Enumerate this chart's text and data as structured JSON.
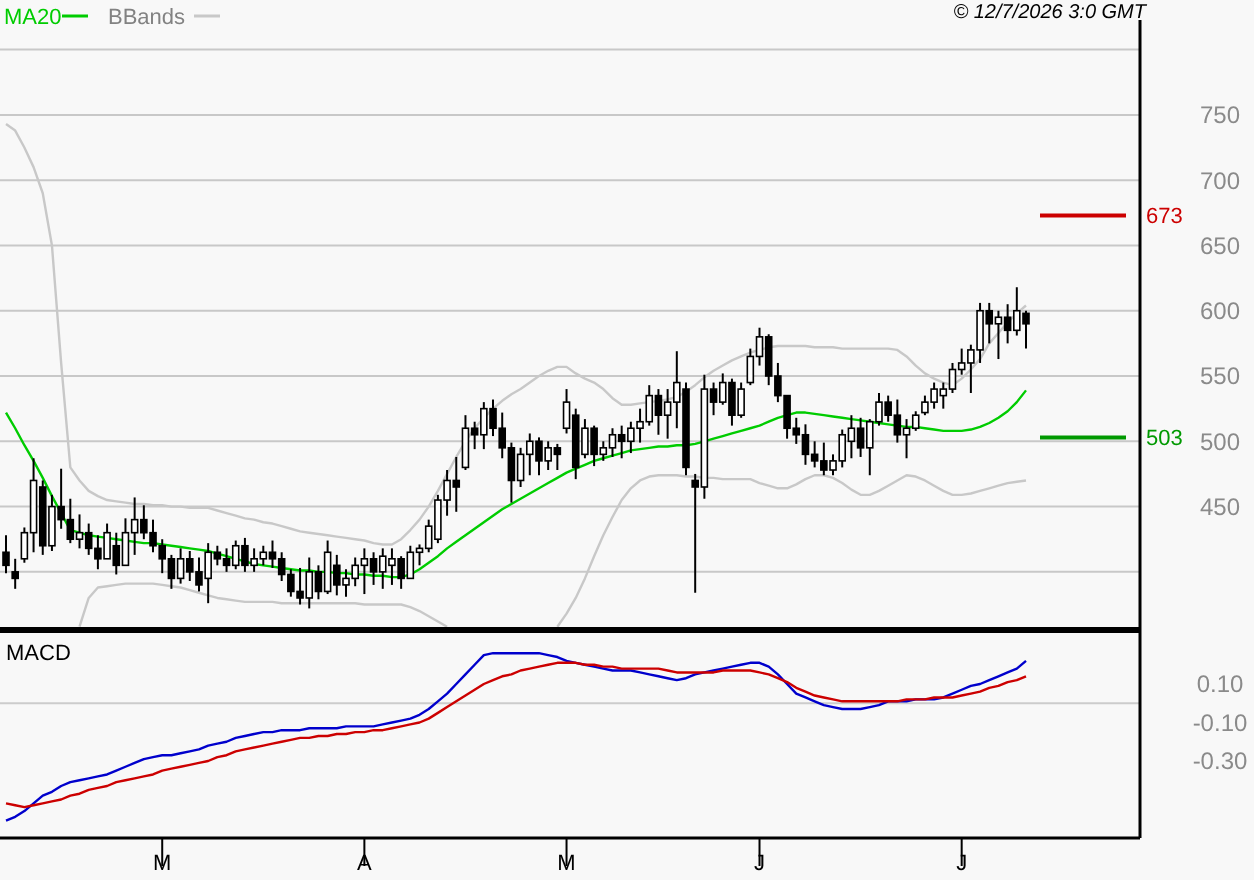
{
  "chart_data": [
    {
      "type": "candlestick",
      "annotations": [
        "© 12/7/2026 3:0 GMT"
      ],
      "legend": "top left",
      "grid": "y",
      "tick_labels": "y",
      "ylim": [
        357,
        838
      ],
      "yticks": [
        {
          "value": 400,
          "label": null
        },
        450,
        500,
        550,
        600,
        650,
        700,
        750,
        {
          "value": 800,
          "label": null
        }
      ],
      "categories": [
        null,
        null,
        null,
        null,
        null,
        null,
        null,
        null,
        null,
        null,
        null,
        null,
        null,
        null,
        null,
        null,
        null,
        null,
        null,
        null,
        null,
        null,
        null,
        null,
        null,
        null,
        null,
        null,
        null,
        null,
        null,
        null,
        null,
        null,
        null,
        null,
        null,
        null,
        null,
        null,
        null,
        null,
        null,
        null,
        null,
        null,
        null,
        null,
        null,
        null,
        null,
        null,
        null,
        null,
        null,
        null,
        null,
        null,
        null,
        null,
        null,
        null,
        null,
        null,
        null,
        null,
        null,
        null,
        null,
        null,
        null,
        null,
        null,
        null,
        null,
        null,
        null,
        null,
        null,
        null,
        null,
        null,
        null,
        null,
        null,
        null,
        null,
        null,
        null,
        null,
        null,
        null,
        null,
        null,
        null,
        null,
        null,
        null,
        null,
        null,
        null,
        null,
        null,
        null,
        null,
        null,
        null,
        null,
        null,
        null,
        null,
        null
      ],
      "ohlc": [
        [
          415,
          428,
          399,
          405
        ],
        [
          400,
          410,
          387,
          395
        ],
        [
          410,
          434,
          407,
          430
        ],
        [
          430,
          487,
          415,
          470
        ],
        [
          465,
          470,
          413,
          420
        ],
        [
          420,
          459,
          416,
          450
        ],
        [
          450,
          479,
          433,
          440
        ],
        [
          440,
          456,
          422,
          425
        ],
        [
          425,
          444,
          418,
          430
        ],
        [
          430,
          437,
          413,
          418
        ],
        [
          418,
          428,
          402,
          410
        ],
        [
          410,
          437,
          410,
          430
        ],
        [
          420,
          430,
          398,
          405
        ],
        [
          405,
          441,
          405,
          430
        ],
        [
          430,
          457,
          413,
          440
        ],
        [
          440,
          451,
          425,
          430
        ],
        [
          430,
          440,
          415,
          420
        ],
        [
          420,
          425,
          399,
          410
        ],
        [
          410,
          413,
          387,
          395
        ],
        [
          395,
          418,
          391,
          410
        ],
        [
          410,
          416,
          393,
          400
        ],
        [
          400,
          411,
          385,
          390
        ],
        [
          395,
          422,
          376,
          415
        ],
        [
          415,
          420,
          405,
          410
        ],
        [
          410,
          418,
          400,
          405
        ],
        [
          405,
          424,
          402,
          420
        ],
        [
          420,
          426,
          400,
          405
        ],
        [
          405,
          418,
          400,
          410
        ],
        [
          410,
          420,
          405,
          415
        ],
        [
          415,
          424,
          403,
          410
        ],
        [
          410,
          415,
          393,
          398
        ],
        [
          398,
          402,
          381,
          385
        ],
        [
          385,
          403,
          375,
          380
        ],
        [
          380,
          411,
          372,
          400
        ],
        [
          400,
          405,
          379,
          385
        ],
        [
          385,
          424,
          383,
          415
        ],
        [
          405,
          413,
          382,
          390
        ],
        [
          390,
          402,
          381,
          395
        ],
        [
          395,
          411,
          389,
          405
        ],
        [
          405,
          418,
          383,
          410
        ],
        [
          410,
          415,
          390,
          400
        ],
        [
          400,
          418,
          387,
          412
        ],
        [
          405,
          418,
          390,
          410
        ],
        [
          410,
          412,
          387,
          395
        ],
        [
          395,
          420,
          395,
          415
        ],
        [
          415,
          421,
          405,
          418
        ],
        [
          418,
          440,
          415,
          435
        ],
        [
          425,
          459,
          422,
          455
        ],
        [
          455,
          478,
          443,
          470
        ],
        [
          470,
          488,
          446,
          465
        ],
        [
          480,
          520,
          478,
          510
        ],
        [
          510,
          515,
          494,
          505
        ],
        [
          505,
          530,
          494,
          525
        ],
        [
          525,
          532,
          504,
          510
        ],
        [
          510,
          522,
          487,
          495
        ],
        [
          495,
          499,
          453,
          470
        ],
        [
          470,
          495,
          465,
          490
        ],
        [
          490,
          506,
          474,
          500
        ],
        [
          500,
          503,
          474,
          485
        ],
        [
          485,
          500,
          478,
          495
        ],
        [
          495,
          498,
          478,
          490
        ],
        [
          510,
          540,
          506,
          530
        ],
        [
          520,
          525,
          471,
          480
        ],
        [
          490,
          517,
          487,
          510
        ],
        [
          510,
          512,
          481,
          490
        ],
        [
          490,
          500,
          485,
          495
        ],
        [
          495,
          510,
          488,
          505
        ],
        [
          505,
          512,
          487,
          500
        ],
        [
          500,
          515,
          491,
          510
        ],
        [
          510,
          525,
          499,
          515
        ],
        [
          515,
          543,
          512,
          535
        ],
        [
          535,
          540,
          505,
          520
        ],
        [
          520,
          540,
          502,
          530
        ],
        [
          530,
          569,
          510,
          545
        ],
        [
          540,
          545,
          474,
          480
        ],
        [
          470,
          475,
          384,
          465
        ],
        [
          465,
          551,
          456,
          540
        ],
        [
          540,
          545,
          520,
          530
        ],
        [
          530,
          552,
          528,
          545
        ],
        [
          545,
          548,
          512,
          520
        ],
        [
          520,
          545,
          518,
          540
        ],
        [
          545,
          571,
          543,
          565
        ],
        [
          565,
          587,
          558,
          580
        ],
        [
          580,
          582,
          543,
          550
        ],
        [
          550,
          560,
          530,
          535
        ],
        [
          535,
          535,
          502,
          510
        ],
        [
          510,
          518,
          498,
          505
        ],
        [
          505,
          513,
          482,
          490
        ],
        [
          490,
          500,
          480,
          485
        ],
        [
          485,
          499,
          474,
          478
        ],
        [
          478,
          490,
          474,
          485
        ],
        [
          485,
          509,
          480,
          505
        ],
        [
          500,
          520,
          487,
          510
        ],
        [
          510,
          518,
          488,
          495
        ],
        [
          495,
          517,
          474,
          515
        ],
        [
          515,
          537,
          512,
          530
        ],
        [
          530,
          535,
          515,
          520
        ],
        [
          520,
          532,
          499,
          505
        ],
        [
          505,
          517,
          487,
          510
        ],
        [
          510,
          523,
          508,
          520
        ],
        [
          522,
          535,
          520,
          530
        ],
        [
          530,
          545,
          525,
          540
        ],
        [
          535,
          545,
          525,
          540
        ],
        [
          540,
          560,
          537,
          555
        ],
        [
          555,
          571,
          551,
          560
        ],
        [
          560,
          574,
          537,
          570
        ],
        [
          570,
          606,
          560,
          600
        ],
        [
          600,
          606,
          575,
          590
        ],
        [
          590,
          600,
          563,
          595
        ],
        [
          595,
          605,
          575,
          585
        ],
        [
          585,
          618,
          581,
          600
        ],
        [
          598,
          600,
          571,
          590
        ]
      ],
      "series": [
        {
          "name": "MA20",
          "type": "line",
          "color": "#00cc00",
          "values": [
            522,
            510,
            497,
            485,
            472,
            458,
            445,
            432,
            430,
            428,
            427,
            426,
            425,
            424,
            423,
            422,
            422,
            421,
            420,
            419,
            418,
            417,
            416,
            414,
            412,
            410,
            408,
            406,
            405,
            404,
            403,
            402,
            401,
            401,
            400,
            400,
            399,
            399,
            398,
            398,
            397,
            397,
            396,
            396,
            398,
            402,
            407,
            412,
            418,
            423,
            428,
            433,
            438,
            443,
            448,
            452,
            456,
            460,
            464,
            468,
            472,
            476,
            479,
            482,
            485,
            487,
            489,
            491,
            493,
            494,
            495,
            496,
            496,
            497,
            497,
            498,
            500,
            502,
            504,
            506,
            508,
            510,
            512,
            515,
            518,
            520,
            522,
            522,
            521,
            520,
            519,
            518,
            517,
            516,
            515,
            514,
            513,
            512,
            511,
            511,
            510,
            509,
            508,
            508,
            508,
            509,
            511,
            514,
            518,
            523,
            530,
            539
          ]
        },
        {
          "name": "BBands",
          "type": "line",
          "color": "#c8c8c8",
          "values": [
            743,
            738,
            725,
            710,
            690,
            650,
            560,
            480,
            470,
            462,
            458,
            455,
            454,
            453,
            452,
            452,
            451,
            451,
            450,
            450,
            449,
            449,
            449,
            447,
            445,
            443,
            441,
            440,
            438,
            437,
            435,
            433,
            431,
            430,
            429,
            428,
            427,
            426,
            425,
            424,
            422,
            421,
            421,
            425,
            432,
            440,
            450,
            462,
            475,
            488,
            500,
            510,
            518,
            525,
            531,
            536,
            540,
            545,
            550,
            554,
            557,
            557,
            552,
            548,
            545,
            540,
            533,
            528,
            528,
            529,
            530,
            531,
            532,
            534,
            538,
            543,
            549,
            554,
            558,
            562,
            565,
            568,
            570,
            572,
            573,
            573,
            573,
            573,
            572,
            572,
            572,
            571,
            571,
            571,
            571,
            571,
            571,
            570,
            565,
            558,
            552,
            548,
            545,
            543,
            548,
            555,
            563,
            575,
            583,
            591,
            598,
            604
          ]
        },
        {
          "type": "line",
          "color": "#c8c8c8",
          "values": [
            null,
            null,
            null,
            null,
            null,
            null,
            null,
            null,
            358,
            380,
            388,
            389,
            390,
            391,
            391,
            391,
            391,
            390,
            389,
            388,
            386,
            384,
            382,
            380,
            379,
            378,
            377,
            377,
            377,
            377,
            376,
            376,
            376,
            376,
            376,
            376,
            376,
            376,
            376,
            375,
            375,
            375,
            375,
            375,
            373,
            370,
            366,
            362,
            358,
            null,
            null,
            null,
            null,
            null,
            null,
            null,
            null,
            null,
            null,
            null,
            358,
            368,
            380,
            395,
            412,
            428,
            442,
            455,
            464,
            470,
            473,
            474,
            474,
            474,
            473,
            473,
            472,
            472,
            471,
            471,
            471,
            471,
            468,
            466,
            464,
            464,
            467,
            471,
            474,
            474,
            472,
            468,
            463,
            459,
            459,
            462,
            466,
            470,
            474,
            473,
            470,
            466,
            462,
            459,
            459,
            460,
            462,
            464,
            466,
            468,
            469,
            470
          ]
        }
      ],
      "ref_lines": [
        {
          "axis": "y",
          "value": 673,
          "label": "673",
          "color": "#cc0000"
        },
        {
          "axis": "y",
          "value": 503,
          "label": "503",
          "color": "#009900"
        }
      ]
    },
    {
      "type": "line",
      "title": "MACD",
      "ylim": [
        -0.7,
        0.37
      ],
      "categories": [
        null,
        null,
        null,
        null,
        null,
        null,
        null,
        null,
        null,
        null,
        null,
        null,
        null,
        null,
        null,
        null,
        null,
        "M",
        null,
        null,
        null,
        null,
        null,
        null,
        null,
        null,
        null,
        null,
        null,
        null,
        null,
        null,
        null,
        null,
        null,
        null,
        null,
        null,
        null,
        "A",
        null,
        null,
        null,
        null,
        null,
        null,
        null,
        null,
        null,
        null,
        null,
        null,
        null,
        null,
        null,
        null,
        null,
        null,
        null,
        null,
        null,
        "M",
        null,
        null,
        null,
        null,
        null,
        null,
        null,
        null,
        null,
        null,
        null,
        null,
        null,
        null,
        null,
        null,
        null,
        null,
        null,
        null,
        "J",
        null,
        null,
        null,
        null,
        null,
        null,
        null,
        null,
        null,
        null,
        null,
        null,
        null,
        null,
        null,
        null,
        null,
        null,
        null,
        null,
        null,
        "J",
        null,
        null,
        null,
        null,
        null,
        null,
        null
      ],
      "yticks": [
        {
          "value": 0.1,
          "label": "0.10"
        },
        {
          "value": -0.1,
          "label": "-0.10"
        },
        {
          "value": -0.3,
          "label": "-0.30"
        }
      ],
      "ref_lines": [
        {
          "axis": "y",
          "value": 0,
          "color": "#cccccc"
        }
      ],
      "series": [
        {
          "color": "#0000cc",
          "values": [
            -0.61,
            -0.59,
            -0.56,
            -0.52,
            -0.48,
            -0.46,
            -0.43,
            -0.41,
            -0.4,
            -0.39,
            -0.38,
            -0.37,
            -0.35,
            -0.33,
            -0.31,
            -0.29,
            -0.28,
            -0.27,
            -0.27,
            -0.26,
            -0.25,
            -0.24,
            -0.22,
            -0.21,
            -0.2,
            -0.18,
            -0.17,
            -0.16,
            -0.15,
            -0.15,
            -0.14,
            -0.14,
            -0.14,
            -0.13,
            -0.13,
            -0.13,
            -0.13,
            -0.12,
            -0.12,
            -0.12,
            -0.12,
            -0.11,
            -0.1,
            -0.09,
            -0.08,
            -0.06,
            -0.03,
            0.01,
            0.05,
            0.1,
            0.15,
            0.2,
            0.25,
            0.26,
            0.26,
            0.26,
            0.26,
            0.26,
            0.26,
            0.25,
            0.24,
            0.22,
            0.21,
            0.2,
            0.19,
            0.18,
            0.17,
            0.17,
            0.17,
            0.16,
            0.15,
            0.14,
            0.13,
            0.12,
            0.13,
            0.15,
            0.16,
            0.17,
            0.18,
            0.19,
            0.2,
            0.21,
            0.21,
            0.19,
            0.15,
            0.1,
            0.05,
            0.03,
            0.01,
            -0.01,
            -0.02,
            -0.03,
            -0.03,
            -0.03,
            -0.02,
            -0.01,
            0.01,
            0.01,
            0.01,
            0.02,
            0.02,
            0.02,
            0.03,
            0.05,
            0.07,
            0.09,
            0.1,
            0.12,
            0.14,
            0.16,
            0.18,
            0.22
          ]
        },
        {
          "color": "#cc0000",
          "values": [
            -0.52,
            -0.53,
            -0.54,
            -0.53,
            -0.52,
            -0.51,
            -0.5,
            -0.48,
            -0.47,
            -0.45,
            -0.44,
            -0.43,
            -0.41,
            -0.4,
            -0.39,
            -0.38,
            -0.37,
            -0.35,
            -0.34,
            -0.33,
            -0.32,
            -0.31,
            -0.3,
            -0.28,
            -0.27,
            -0.25,
            -0.24,
            -0.23,
            -0.22,
            -0.21,
            -0.2,
            -0.19,
            -0.18,
            -0.18,
            -0.17,
            -0.17,
            -0.16,
            -0.16,
            -0.15,
            -0.15,
            -0.14,
            -0.14,
            -0.13,
            -0.12,
            -0.11,
            -0.1,
            -0.08,
            -0.05,
            -0.02,
            0.01,
            0.04,
            0.07,
            0.1,
            0.12,
            0.14,
            0.15,
            0.17,
            0.18,
            0.19,
            0.2,
            0.21,
            0.21,
            0.21,
            0.2,
            0.2,
            0.19,
            0.19,
            0.18,
            0.18,
            0.18,
            0.18,
            0.18,
            0.17,
            0.16,
            0.16,
            0.16,
            0.16,
            0.16,
            0.17,
            0.17,
            0.17,
            0.17,
            0.16,
            0.15,
            0.13,
            0.11,
            0.08,
            0.06,
            0.04,
            0.03,
            0.02,
            0.01,
            0.01,
            0.01,
            0.01,
            0.01,
            0.01,
            0.01,
            0.02,
            0.02,
            0.02,
            0.03,
            0.03,
            0.03,
            0.04,
            0.05,
            0.06,
            0.08,
            0.09,
            0.11,
            0.12,
            0.14
          ]
        }
      ]
    }
  ]
}
